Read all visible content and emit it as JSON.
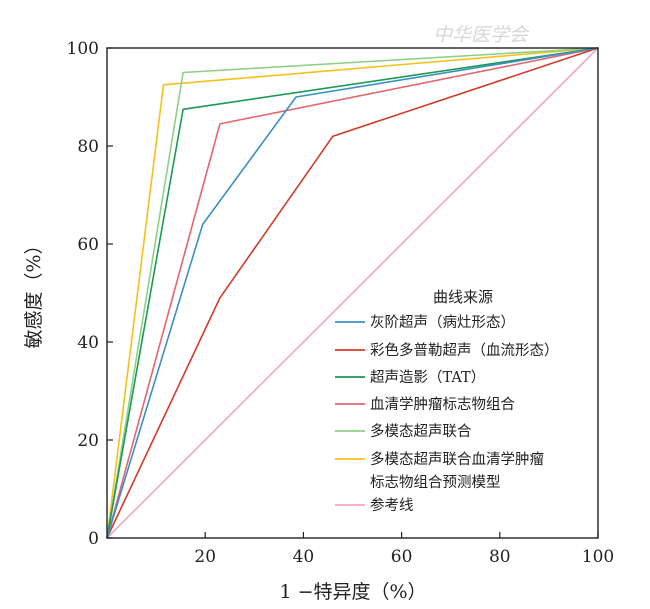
{
  "watermark": "中华医学会",
  "chart_data": {
    "type": "line",
    "title": "",
    "xlabel": "1 −特异度（%）",
    "ylabel": "敏感度（%）",
    "xlim": [
      0,
      100
    ],
    "ylim": [
      0,
      100
    ],
    "xticks": [
      "20",
      "40",
      "60",
      "80",
      "100"
    ],
    "yticks": [
      "0",
      "20",
      "40",
      "60",
      "80",
      "100"
    ],
    "grid": false,
    "legend": {
      "title": "曲线来源",
      "placement": "bottom-right"
    },
    "series": [
      {
        "name": "灰阶超声（病灶形态）",
        "color": "#3b8fc9",
        "points": [
          [
            0,
            0
          ],
          [
            19.5,
            64
          ],
          [
            38.5,
            90
          ],
          [
            100,
            100
          ]
        ]
      },
      {
        "name": "彩色多普勒超声（血流形态）",
        "color": "#d23a2b",
        "points": [
          [
            0,
            0
          ],
          [
            23,
            49
          ],
          [
            46,
            82
          ],
          [
            100,
            100
          ]
        ]
      },
      {
        "name": "超声造影（TAT）",
        "color": "#1b9a55",
        "points": [
          [
            0,
            0
          ],
          [
            15.5,
            87.5
          ],
          [
            100,
            100
          ]
        ]
      },
      {
        "name": "血清学肿瘤标志物组合",
        "color": "#e0676f",
        "points": [
          [
            0,
            0
          ],
          [
            23,
            84.5
          ],
          [
            100,
            100
          ]
        ]
      },
      {
        "name": "多模态超声联合",
        "color": "#8fcf86",
        "points": [
          [
            0,
            0
          ],
          [
            15.5,
            95
          ],
          [
            100,
            100
          ]
        ]
      },
      {
        "name": "多模态超声联合血清学肿瘤",
        "name_line2": "标志物组合预测模型",
        "color": "#f2c21b",
        "points": [
          [
            0,
            0
          ],
          [
            11.5,
            92.5
          ],
          [
            100,
            100
          ]
        ]
      },
      {
        "name": "参考线",
        "color": "#f2a6c1",
        "points": [
          [
            0,
            0
          ],
          [
            100,
            100
          ]
        ]
      }
    ]
  }
}
